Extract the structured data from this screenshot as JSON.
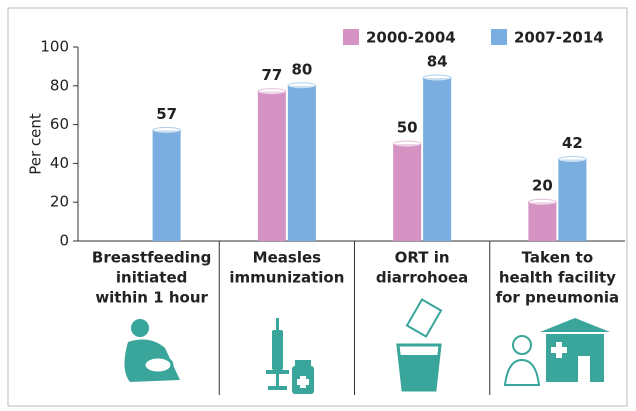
{
  "chart_data": {
    "type": "bar",
    "y_label": "Per cent",
    "categories": [
      [
        "Breastfeeding",
        "initiated",
        "within 1 hour"
      ],
      [
        "Measles",
        "immunization"
      ],
      [
        "ORT in",
        "diarrohoea"
      ],
      [
        "Taken to",
        "health facility",
        "for pneumonia"
      ]
    ],
    "series": [
      {
        "name": "2000-2004",
        "color": "#d593c4",
        "values": [
          null,
          77,
          50,
          20
        ]
      },
      {
        "name": "2007-2014",
        "color": "#7aaee0",
        "values": [
          57,
          80,
          84,
          42
        ]
      }
    ],
    "ylim": [
      0,
      100
    ],
    "yticks": [
      0,
      20,
      40,
      60,
      80,
      100
    ],
    "grid": false,
    "legend": "top-right"
  }
}
